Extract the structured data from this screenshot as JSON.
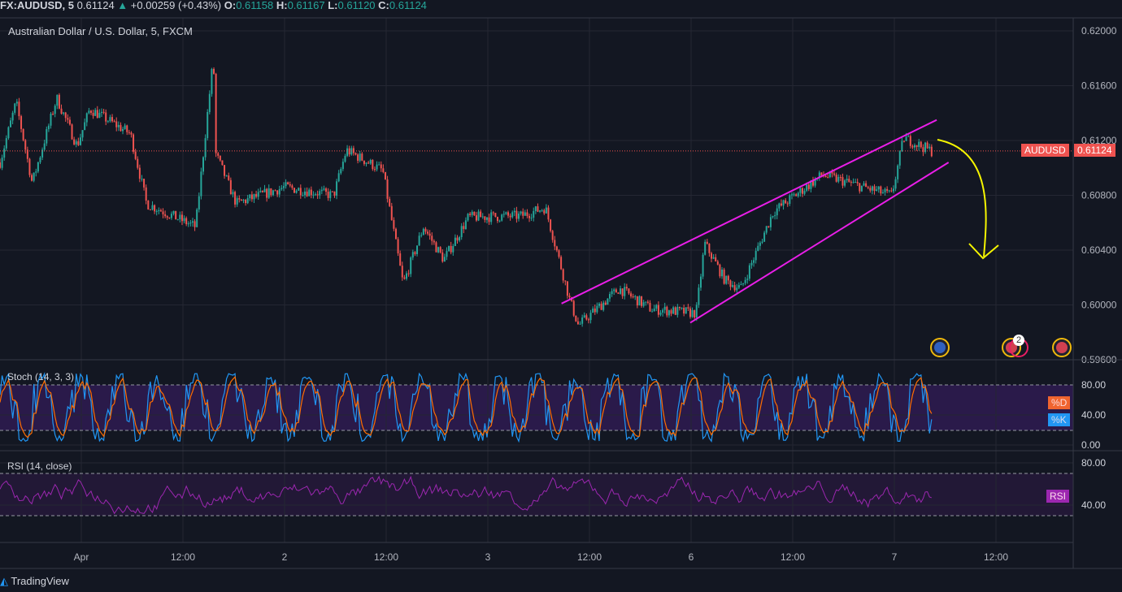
{
  "header": {
    "symbol": "FX:AUDUSD, 5",
    "last": "0.61124",
    "change": "+0.00259 (+0.43%)",
    "o_label": "O:",
    "o": "0.61158",
    "h_label": "H:",
    "h": "0.61167",
    "l_label": "L:",
    "l": "0.61120",
    "c_label": "C:",
    "c": "0.61124"
  },
  "title": "Australian Dollar / U.S. Dollar, 5, FXCM",
  "price_tag": {
    "label": "AUDUSD",
    "value": "0.61124"
  },
  "stoch": {
    "label": "Stoch (14, 3, 3)",
    "d_tag": "%D",
    "k_tag": "%K",
    "ticks": [
      "80.00",
      "40.00",
      "0.00"
    ]
  },
  "rsi": {
    "label": "RSI (14, close)",
    "tag": "RSI",
    "ticks": [
      "80.00",
      "40.00"
    ]
  },
  "footer": {
    "brand": "TradingView"
  },
  "event_badge_count": "2",
  "colors": {
    "bg": "#131722",
    "up": "#26a69a",
    "down": "#ef5350",
    "channel": "#e91ee8",
    "arrow": "#f5f500",
    "stoch_k": "#2196f3",
    "stoch_d": "#ff6d00",
    "rsi": "#9c27b0"
  },
  "chart_data": {
    "type": "candlestick",
    "title": "Australian Dollar / U.S. Dollar, 5, FXCM",
    "ylim": [
      0.596,
      0.62
    ],
    "y_ticks": [
      "0.62000",
      "0.61600",
      "0.61200",
      "0.60800",
      "0.60400",
      "0.60000",
      "0.59600"
    ],
    "x_ticks": [
      "Apr",
      "12:00",
      "2",
      "12:00",
      "3",
      "12:00",
      "6",
      "12:00",
      "7",
      "12:00"
    ],
    "x_tick_hours": [
      0,
      12,
      24,
      36,
      48,
      60,
      72,
      84,
      96,
      108
    ],
    "price_path": [
      [
        -9.6,
        0.6104
      ],
      [
        -7.7,
        0.6148
      ],
      [
        -5.8,
        0.6089
      ],
      [
        -2.9,
        0.6151
      ],
      [
        -0.5,
        0.6116
      ],
      [
        1.0,
        0.6143
      ],
      [
        5.8,
        0.6125
      ],
      [
        7.7,
        0.6074
      ],
      [
        13.5,
        0.6057
      ],
      [
        15.6,
        0.6181
      ],
      [
        15.9,
        0.611
      ],
      [
        18.3,
        0.6074
      ],
      [
        24.0,
        0.6086
      ],
      [
        29.8,
        0.608
      ],
      [
        31.3,
        0.6113
      ],
      [
        35.6,
        0.6098
      ],
      [
        38.0,
        0.6015
      ],
      [
        40.4,
        0.6057
      ],
      [
        42.8,
        0.6033
      ],
      [
        45.7,
        0.6064
      ],
      [
        51.9,
        0.6065
      ],
      [
        54.8,
        0.6071
      ],
      [
        57.7,
        0.6003
      ],
      [
        58.7,
        0.5985
      ],
      [
        63.5,
        0.6012
      ],
      [
        67.3,
        0.5997
      ],
      [
        72.6,
        0.5994
      ],
      [
        73.6,
        0.6045
      ],
      [
        76.0,
        0.6018
      ],
      [
        77.9,
        0.6012
      ],
      [
        81.7,
        0.6068
      ],
      [
        87.5,
        0.6095
      ],
      [
        92.3,
        0.6086
      ],
      [
        95.7,
        0.608
      ],
      [
        97.1,
        0.6122
      ],
      [
        100.5,
        0.6112
      ]
    ],
    "channel_upper": [
      [
        56.7,
        0.6001
      ],
      [
        101.0,
        0.6135
      ]
    ],
    "channel_lower": [
      [
        71.9,
        0.5987
      ],
      [
        102.4,
        0.6104
      ]
    ],
    "last_price": 0.61124
  }
}
